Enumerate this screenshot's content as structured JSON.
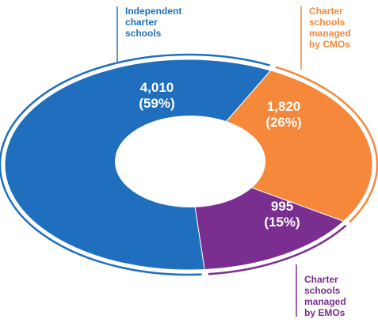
{
  "chart_data": {
    "type": "pie",
    "categories": [
      "Independent charter schools",
      "Charter schools managed by CMOs",
      "Charter schools managed by EMOs"
    ],
    "values": [
      4010,
      1820,
      995
    ],
    "value_labels": [
      "4,010",
      "1,820",
      "995"
    ],
    "percent_labels": [
      "(59%)",
      "(26%)",
      "(15%)"
    ],
    "colors": [
      "#1f6fbe",
      "#f5883a",
      "#7a2e8f"
    ],
    "category_label_lines": [
      [
        "Independent",
        "charter",
        "schools"
      ],
      [
        "Charter",
        "schools",
        "managed",
        "by CMOs"
      ],
      [
        "Charter",
        "schools",
        "managed",
        "by EMOs"
      ]
    ]
  }
}
